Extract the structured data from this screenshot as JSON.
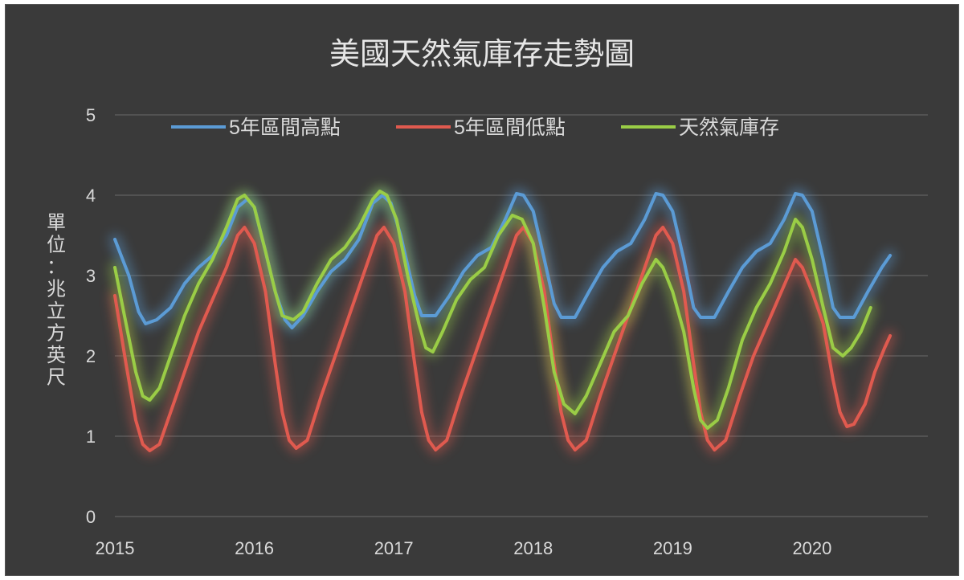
{
  "chart_data": {
    "type": "line",
    "title": "美國天然氣庫存走勢圖",
    "ylabel": "單位：兆立方英尺",
    "xlabel": "",
    "xlim": [
      2015,
      2020.83
    ],
    "ylim": [
      0,
      5
    ],
    "yticks": [
      "0",
      "1",
      "2",
      "3",
      "4",
      "5"
    ],
    "xticks": [
      "2015",
      "2016",
      "2017",
      "2018",
      "2019",
      "2020"
    ],
    "grid": true,
    "legend_position": "top",
    "series": [
      {
        "name": "5年區間高點",
        "color": "#5b9bd5",
        "points": [
          [
            2015.0,
            3.45
          ],
          [
            2015.1,
            3.0
          ],
          [
            2015.17,
            2.55
          ],
          [
            2015.22,
            2.4
          ],
          [
            2015.3,
            2.45
          ],
          [
            2015.4,
            2.6
          ],
          [
            2015.5,
            2.9
          ],
          [
            2015.6,
            3.1
          ],
          [
            2015.7,
            3.25
          ],
          [
            2015.8,
            3.5
          ],
          [
            2015.88,
            3.85
          ],
          [
            2015.95,
            3.95
          ],
          [
            2016.0,
            3.85
          ],
          [
            2016.08,
            3.3
          ],
          [
            2016.15,
            2.8
          ],
          [
            2016.22,
            2.45
          ],
          [
            2016.27,
            2.35
          ],
          [
            2016.35,
            2.5
          ],
          [
            2016.45,
            2.8
          ],
          [
            2016.55,
            3.05
          ],
          [
            2016.65,
            3.2
          ],
          [
            2016.75,
            3.45
          ],
          [
            2016.85,
            3.9
          ],
          [
            2016.92,
            4.0
          ],
          [
            2016.98,
            3.9
          ],
          [
            2017.05,
            3.5
          ],
          [
            2017.15,
            2.75
          ],
          [
            2017.2,
            2.5
          ],
          [
            2017.3,
            2.5
          ],
          [
            2017.4,
            2.75
          ],
          [
            2017.5,
            3.05
          ],
          [
            2017.6,
            3.25
          ],
          [
            2017.7,
            3.35
          ],
          [
            2017.8,
            3.7
          ],
          [
            2017.88,
            4.02
          ],
          [
            2017.93,
            4.0
          ],
          [
            2018.0,
            3.8
          ],
          [
            2018.08,
            3.2
          ],
          [
            2018.15,
            2.65
          ],
          [
            2018.2,
            2.48
          ],
          [
            2018.3,
            2.48
          ],
          [
            2018.4,
            2.8
          ],
          [
            2018.5,
            3.1
          ],
          [
            2018.6,
            3.3
          ],
          [
            2018.7,
            3.4
          ],
          [
            2018.8,
            3.7
          ],
          [
            2018.88,
            4.02
          ],
          [
            2018.93,
            4.0
          ],
          [
            2019.0,
            3.8
          ],
          [
            2019.08,
            3.2
          ],
          [
            2019.15,
            2.6
          ],
          [
            2019.2,
            2.48
          ],
          [
            2019.3,
            2.48
          ],
          [
            2019.4,
            2.8
          ],
          [
            2019.5,
            3.1
          ],
          [
            2019.6,
            3.3
          ],
          [
            2019.7,
            3.4
          ],
          [
            2019.8,
            3.7
          ],
          [
            2019.88,
            4.02
          ],
          [
            2019.93,
            4.0
          ],
          [
            2020.0,
            3.8
          ],
          [
            2020.08,
            3.2
          ],
          [
            2020.15,
            2.6
          ],
          [
            2020.2,
            2.48
          ],
          [
            2020.3,
            2.48
          ],
          [
            2020.4,
            2.8
          ],
          [
            2020.5,
            3.1
          ],
          [
            2020.56,
            3.25
          ]
        ]
      },
      {
        "name": "5年區間低點",
        "color": "#e05a4f",
        "points": [
          [
            2015.0,
            2.75
          ],
          [
            2015.08,
            1.9
          ],
          [
            2015.15,
            1.2
          ],
          [
            2015.2,
            0.9
          ],
          [
            2015.25,
            0.82
          ],
          [
            2015.32,
            0.9
          ],
          [
            2015.4,
            1.3
          ],
          [
            2015.5,
            1.8
          ],
          [
            2015.6,
            2.3
          ],
          [
            2015.7,
            2.7
          ],
          [
            2015.8,
            3.1
          ],
          [
            2015.88,
            3.5
          ],
          [
            2015.93,
            3.6
          ],
          [
            2016.0,
            3.4
          ],
          [
            2016.08,
            2.8
          ],
          [
            2016.15,
            1.9
          ],
          [
            2016.2,
            1.3
          ],
          [
            2016.25,
            0.95
          ],
          [
            2016.3,
            0.85
          ],
          [
            2016.38,
            0.95
          ],
          [
            2016.48,
            1.5
          ],
          [
            2016.58,
            2.0
          ],
          [
            2016.68,
            2.5
          ],
          [
            2016.78,
            3.0
          ],
          [
            2016.88,
            3.5
          ],
          [
            2016.93,
            3.6
          ],
          [
            2017.0,
            3.4
          ],
          [
            2017.08,
            2.8
          ],
          [
            2017.15,
            1.9
          ],
          [
            2017.2,
            1.3
          ],
          [
            2017.25,
            0.95
          ],
          [
            2017.3,
            0.83
          ],
          [
            2017.38,
            0.95
          ],
          [
            2017.48,
            1.5
          ],
          [
            2017.58,
            2.0
          ],
          [
            2017.68,
            2.5
          ],
          [
            2017.78,
            3.0
          ],
          [
            2017.88,
            3.5
          ],
          [
            2017.93,
            3.6
          ],
          [
            2018.0,
            3.4
          ],
          [
            2018.08,
            2.8
          ],
          [
            2018.15,
            1.9
          ],
          [
            2018.2,
            1.3
          ],
          [
            2018.25,
            0.95
          ],
          [
            2018.3,
            0.83
          ],
          [
            2018.38,
            0.95
          ],
          [
            2018.48,
            1.5
          ],
          [
            2018.58,
            2.0
          ],
          [
            2018.68,
            2.5
          ],
          [
            2018.78,
            3.0
          ],
          [
            2018.88,
            3.5
          ],
          [
            2018.93,
            3.6
          ],
          [
            2019.0,
            3.4
          ],
          [
            2019.08,
            2.8
          ],
          [
            2019.15,
            1.9
          ],
          [
            2019.2,
            1.3
          ],
          [
            2019.25,
            0.95
          ],
          [
            2019.3,
            0.83
          ],
          [
            2019.38,
            0.95
          ],
          [
            2019.48,
            1.5
          ],
          [
            2019.58,
            2.0
          ],
          [
            2019.68,
            2.4
          ],
          [
            2019.78,
            2.8
          ],
          [
            2019.88,
            3.2
          ],
          [
            2019.93,
            3.1
          ],
          [
            2020.0,
            2.8
          ],
          [
            2020.08,
            2.4
          ],
          [
            2020.15,
            1.7
          ],
          [
            2020.2,
            1.3
          ],
          [
            2020.25,
            1.12
          ],
          [
            2020.3,
            1.15
          ],
          [
            2020.38,
            1.4
          ],
          [
            2020.45,
            1.8
          ],
          [
            2020.52,
            2.1
          ],
          [
            2020.56,
            2.25
          ]
        ]
      },
      {
        "name": "天然氣庫存",
        "color": "#9acd46",
        "points": [
          [
            2015.0,
            3.1
          ],
          [
            2015.08,
            2.4
          ],
          [
            2015.15,
            1.8
          ],
          [
            2015.2,
            1.5
          ],
          [
            2015.25,
            1.45
          ],
          [
            2015.32,
            1.6
          ],
          [
            2015.4,
            2.0
          ],
          [
            2015.5,
            2.5
          ],
          [
            2015.6,
            2.9
          ],
          [
            2015.7,
            3.2
          ],
          [
            2015.8,
            3.6
          ],
          [
            2015.88,
            3.95
          ],
          [
            2015.93,
            4.0
          ],
          [
            2016.0,
            3.85
          ],
          [
            2016.08,
            3.3
          ],
          [
            2016.15,
            2.8
          ],
          [
            2016.2,
            2.5
          ],
          [
            2016.28,
            2.45
          ],
          [
            2016.35,
            2.55
          ],
          [
            2016.45,
            2.9
          ],
          [
            2016.55,
            3.2
          ],
          [
            2016.65,
            3.35
          ],
          [
            2016.75,
            3.6
          ],
          [
            2016.85,
            3.95
          ],
          [
            2016.9,
            4.05
          ],
          [
            2016.95,
            4.0
          ],
          [
            2017.02,
            3.7
          ],
          [
            2017.1,
            3.0
          ],
          [
            2017.18,
            2.4
          ],
          [
            2017.23,
            2.1
          ],
          [
            2017.28,
            2.05
          ],
          [
            2017.35,
            2.3
          ],
          [
            2017.45,
            2.7
          ],
          [
            2017.55,
            2.95
          ],
          [
            2017.65,
            3.1
          ],
          [
            2017.75,
            3.5
          ],
          [
            2017.85,
            3.75
          ],
          [
            2017.92,
            3.7
          ],
          [
            2018.0,
            3.4
          ],
          [
            2018.08,
            2.6
          ],
          [
            2018.15,
            1.8
          ],
          [
            2018.22,
            1.4
          ],
          [
            2018.3,
            1.28
          ],
          [
            2018.38,
            1.5
          ],
          [
            2018.48,
            1.9
          ],
          [
            2018.58,
            2.3
          ],
          [
            2018.68,
            2.5
          ],
          [
            2018.78,
            2.9
          ],
          [
            2018.88,
            3.2
          ],
          [
            2018.93,
            3.1
          ],
          [
            2019.0,
            2.8
          ],
          [
            2019.08,
            2.3
          ],
          [
            2019.15,
            1.6
          ],
          [
            2019.2,
            1.2
          ],
          [
            2019.25,
            1.1
          ],
          [
            2019.32,
            1.2
          ],
          [
            2019.4,
            1.6
          ],
          [
            2019.5,
            2.2
          ],
          [
            2019.6,
            2.6
          ],
          [
            2019.7,
            2.9
          ],
          [
            2019.8,
            3.3
          ],
          [
            2019.88,
            3.7
          ],
          [
            2019.93,
            3.6
          ],
          [
            2020.0,
            3.2
          ],
          [
            2020.08,
            2.6
          ],
          [
            2020.15,
            2.1
          ],
          [
            2020.22,
            2.0
          ],
          [
            2020.28,
            2.1
          ],
          [
            2020.35,
            2.3
          ],
          [
            2020.42,
            2.6
          ]
        ]
      }
    ]
  }
}
